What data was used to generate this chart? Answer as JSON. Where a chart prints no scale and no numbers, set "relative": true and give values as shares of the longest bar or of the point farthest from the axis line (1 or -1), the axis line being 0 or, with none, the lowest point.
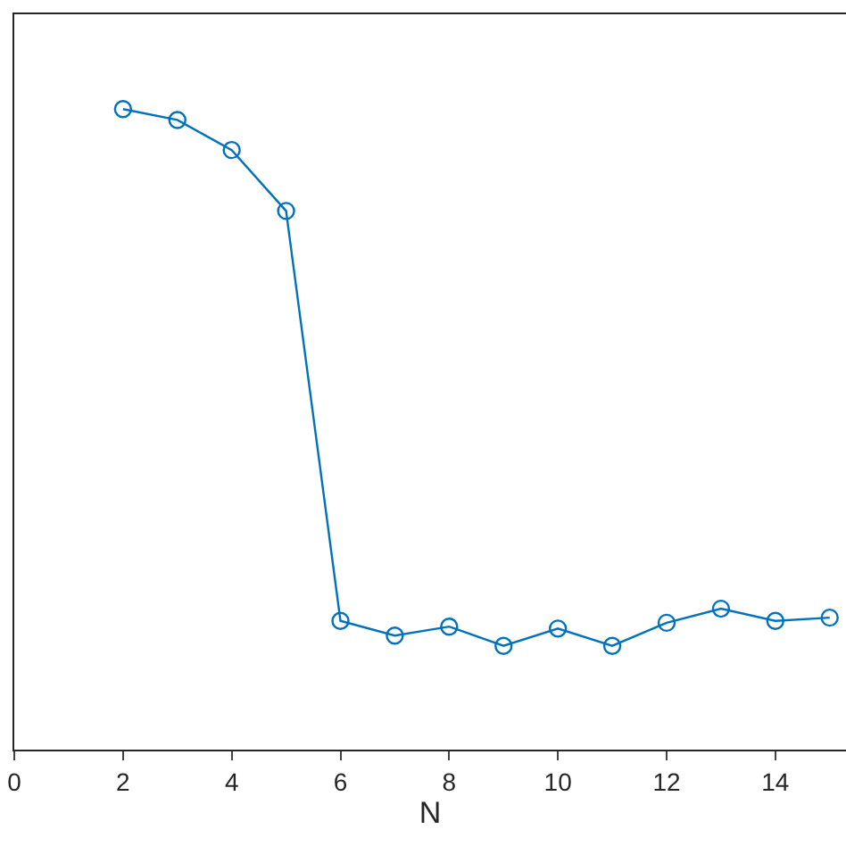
{
  "chart_data": {
    "type": "line",
    "xlabel": "N",
    "relative": true,
    "x": [
      2,
      3,
      4,
      5,
      6,
      7,
      8,
      9,
      10,
      11,
      12,
      13,
      14,
      15
    ],
    "series": [
      {
        "color": "#0072bd",
        "values": [
          1,
          0.983,
          0.936,
          0.841,
          0.201,
          0.178,
          0.192,
          0.162,
          0.189,
          0.162,
          0.198,
          0.22,
          0.201,
          0.206
        ]
      }
    ],
    "xlim": [
      0,
      15.3
    ],
    "xticks": [
      0,
      2,
      4,
      6,
      8,
      10,
      12,
      14
    ],
    "marker": "circle",
    "line_style": "solid"
  }
}
